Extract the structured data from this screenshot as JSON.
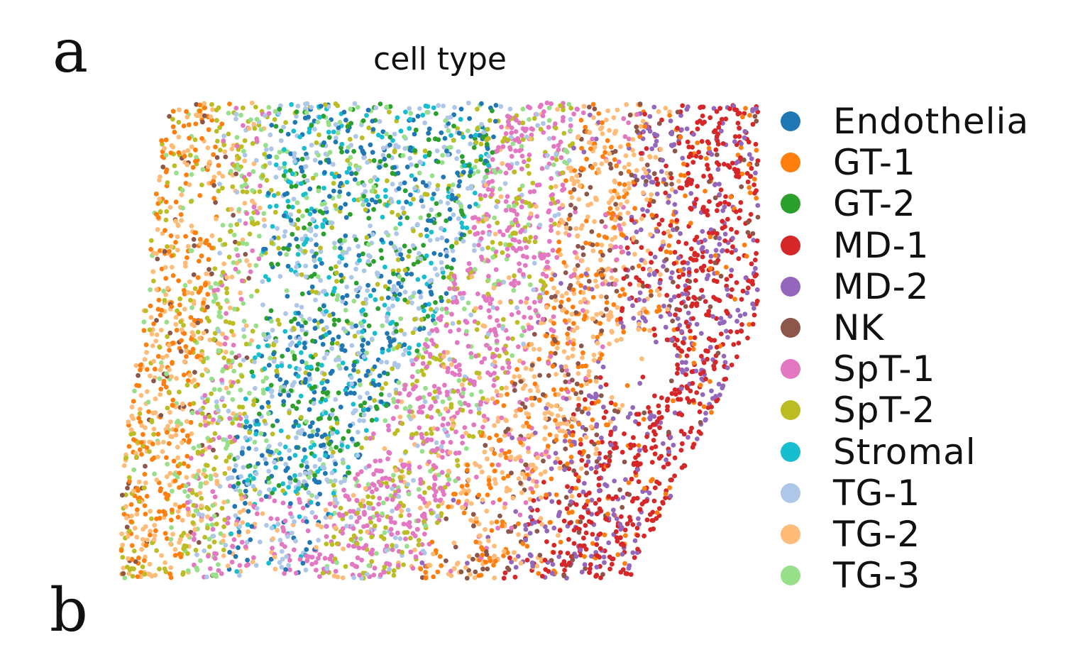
{
  "panel_label": "a",
  "next_panel_label": "b",
  "chart_data": {
    "type": "scatter",
    "title": "cell type",
    "xlabel": "",
    "ylabel": "",
    "axes_visible": false,
    "grid": false,
    "legend_position": "right",
    "series": [
      {
        "name": "Endothelia",
        "color": "#1f77b4",
        "region": "central band"
      },
      {
        "name": "GT-1",
        "color": "#ff7f0e",
        "region": "left edge and right band"
      },
      {
        "name": "GT-2",
        "color": "#2ca02c",
        "region": "central band"
      },
      {
        "name": "MD-1",
        "color": "#d62728",
        "region": "right edge"
      },
      {
        "name": "MD-2",
        "color": "#9467bd",
        "region": "right edge"
      },
      {
        "name": "NK",
        "color": "#8c564b",
        "region": "scattered"
      },
      {
        "name": "SpT-1",
        "color": "#e377c2",
        "region": "center-right and left"
      },
      {
        "name": "SpT-2",
        "color": "#bcbd22",
        "region": "left-center"
      },
      {
        "name": "Stromal",
        "color": "#17becf",
        "region": "central band"
      },
      {
        "name": "TG-1",
        "color": "#aec7e8",
        "region": "central band"
      },
      {
        "name": "TG-2",
        "color": "#ffbb78",
        "region": "left edge and right band"
      },
      {
        "name": "TG-3",
        "color": "#98df8a",
        "region": "left-center"
      }
    ]
  }
}
